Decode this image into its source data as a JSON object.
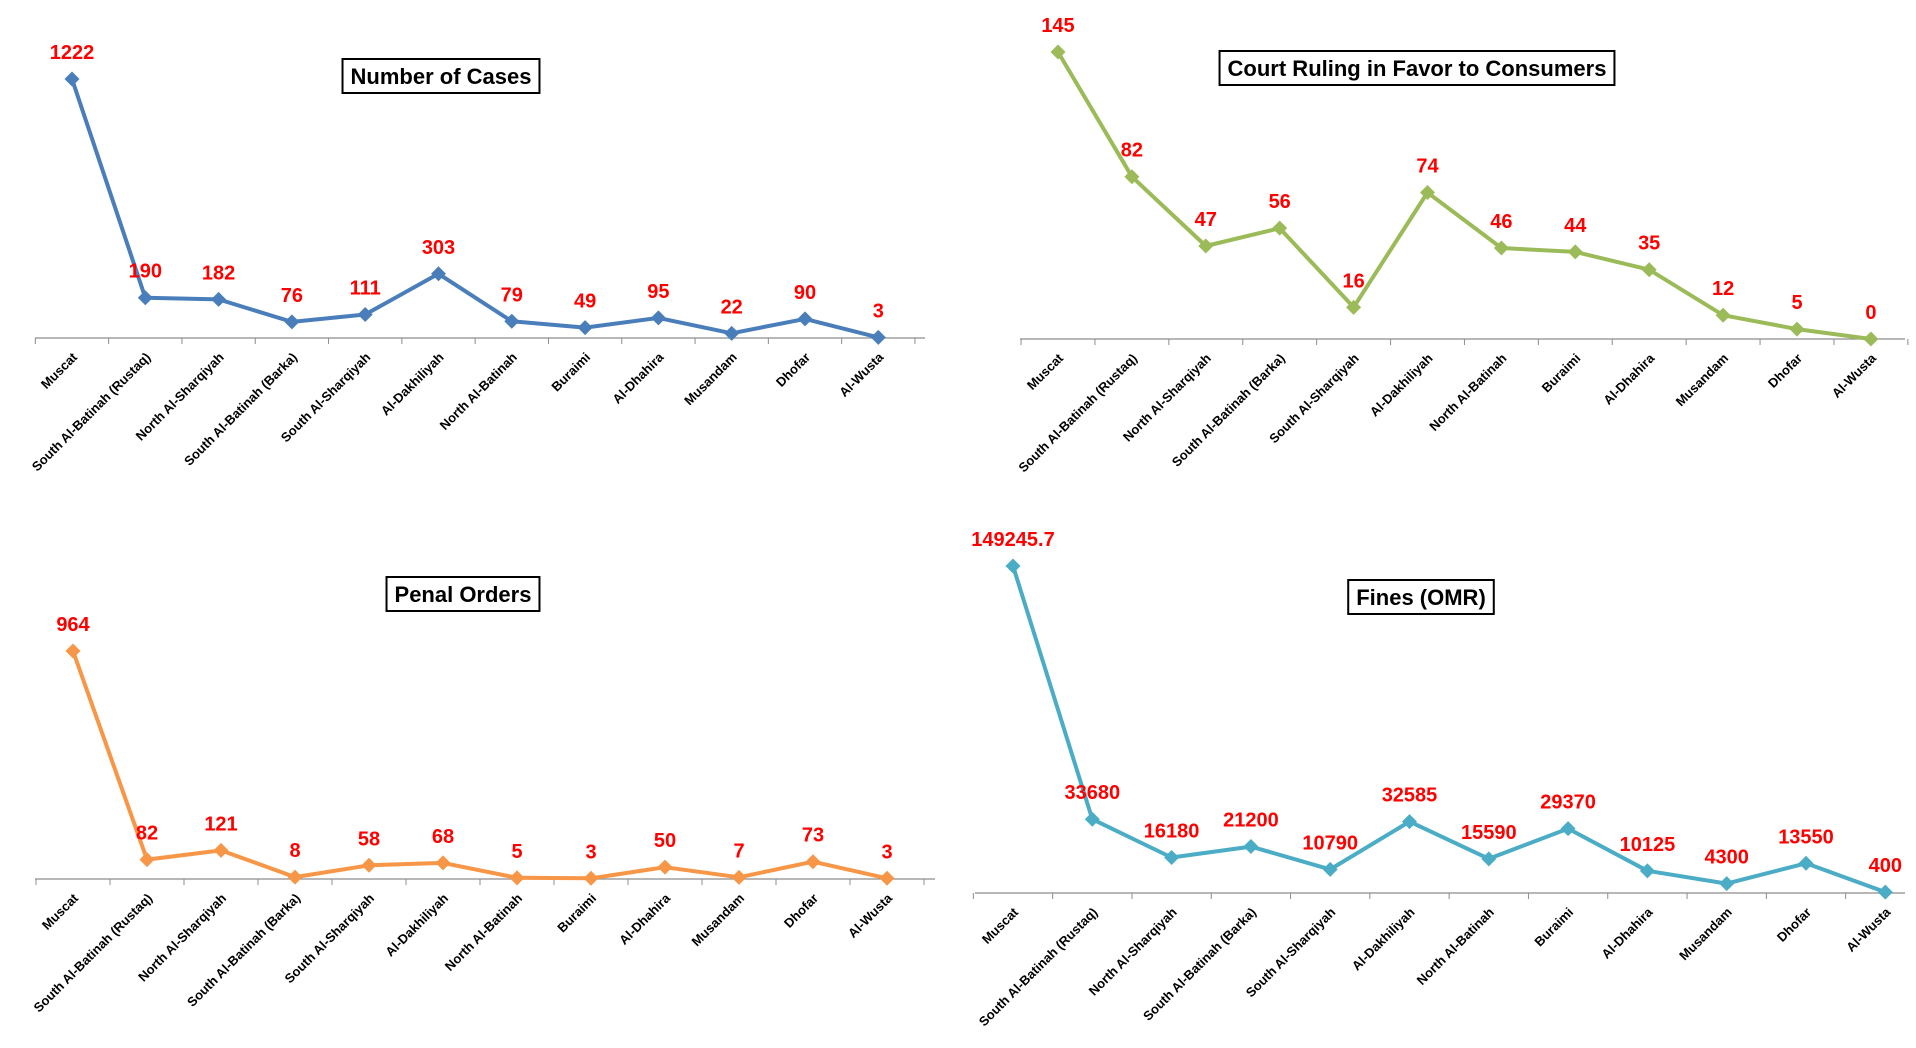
{
  "chart_data": [
    {
      "type": "line",
      "title": "Number of Cases",
      "color": "#4a7ebb",
      "categories": [
        "Muscat",
        "South Al-Batinah (Rustaq)",
        "North Al-Sharqiyah",
        "South Al-Batinah (Barka)",
        "South Al-Sharqiyah",
        "Al-Dakhiliyah",
        "North Al-Batinah",
        "Buraimi",
        "Al-Dhahira",
        "Musandam",
        "Dhofar",
        "Al-Wusta"
      ],
      "values": [
        1222,
        190,
        182,
        76,
        111,
        303,
        79,
        49,
        95,
        22,
        90,
        3
      ],
      "data_labels": [
        "1222",
        "190",
        "182",
        "76",
        "111",
        "303",
        "79",
        "49",
        "95",
        "22",
        "90",
        "3"
      ],
      "marker": "diamond",
      "grid": false,
      "legend": "none"
    },
    {
      "type": "line",
      "title": "Court Ruling in Favor to Consumers",
      "color": "#9bbb59",
      "categories": [
        "Muscat",
        "South Al-Batinah (Rustaq)",
        "North Al-Sharqiyah",
        "South Al-Batinah (Barka)",
        "South Al-Sharqiyah",
        "Al-Dakhiliyah",
        "North Al-Batinah",
        "Buraimi",
        "Al-Dhahira",
        "Musandam",
        "Dhofar",
        "Al-Wusta"
      ],
      "values": [
        145,
        82,
        47,
        56,
        16,
        74,
        46,
        44,
        35,
        12,
        5,
        0
      ],
      "data_labels": [
        "145",
        "82",
        "47",
        "56",
        "16",
        "74",
        "46",
        "44",
        "35",
        "12",
        "5",
        "0"
      ],
      "marker": "diamond",
      "grid": false,
      "legend": "none"
    },
    {
      "type": "line",
      "title": "Penal Orders",
      "color": "#f79646",
      "categories": [
        "Muscat",
        "South Al-Batinah (Rustaq)",
        "North Al-Sharqiyah",
        "South Al-Batinah (Barka)",
        "South Al-Sharqiyah",
        "Al-Dakhiliyah",
        "North Al-Batinah",
        "Buraimi",
        "Al-Dhahira",
        "Musandam",
        "Dhofar",
        "Al-Wusta"
      ],
      "values": [
        964,
        82,
        121,
        8,
        58,
        68,
        5,
        3,
        50,
        7,
        73,
        3
      ],
      "data_labels": [
        "964",
        "82",
        "121",
        "8",
        "58",
        "68",
        "5",
        "3",
        "50",
        "7",
        "73",
        "3"
      ],
      "marker": "diamond",
      "grid": false,
      "legend": "none"
    },
    {
      "type": "line",
      "title": "Fines (OMR)",
      "color": "#4bacc6",
      "categories": [
        "Muscat",
        "South Al-Batinah (Rustaq)",
        "North Al-Sharqiyah",
        "South Al-Batinah (Barka)",
        "South Al-Sharqiyah",
        "Al-Dakhiliyah",
        "North Al-Batinah",
        "Buraimi",
        "Al-Dhahira",
        "Musandam",
        "Dhofar",
        "Al-Wusta"
      ],
      "values": [
        149245.7,
        33680,
        16180,
        21200,
        10790,
        32585,
        15590,
        29370,
        10125,
        4300,
        13550,
        400
      ],
      "data_labels": [
        "149245.7",
        "33680",
        "16180",
        "21200",
        "10790",
        "32585",
        "15590",
        "29370",
        "10125",
        "4300",
        "13550",
        "400"
      ],
      "marker": "diamond",
      "grid": false,
      "legend": "none"
    }
  ]
}
